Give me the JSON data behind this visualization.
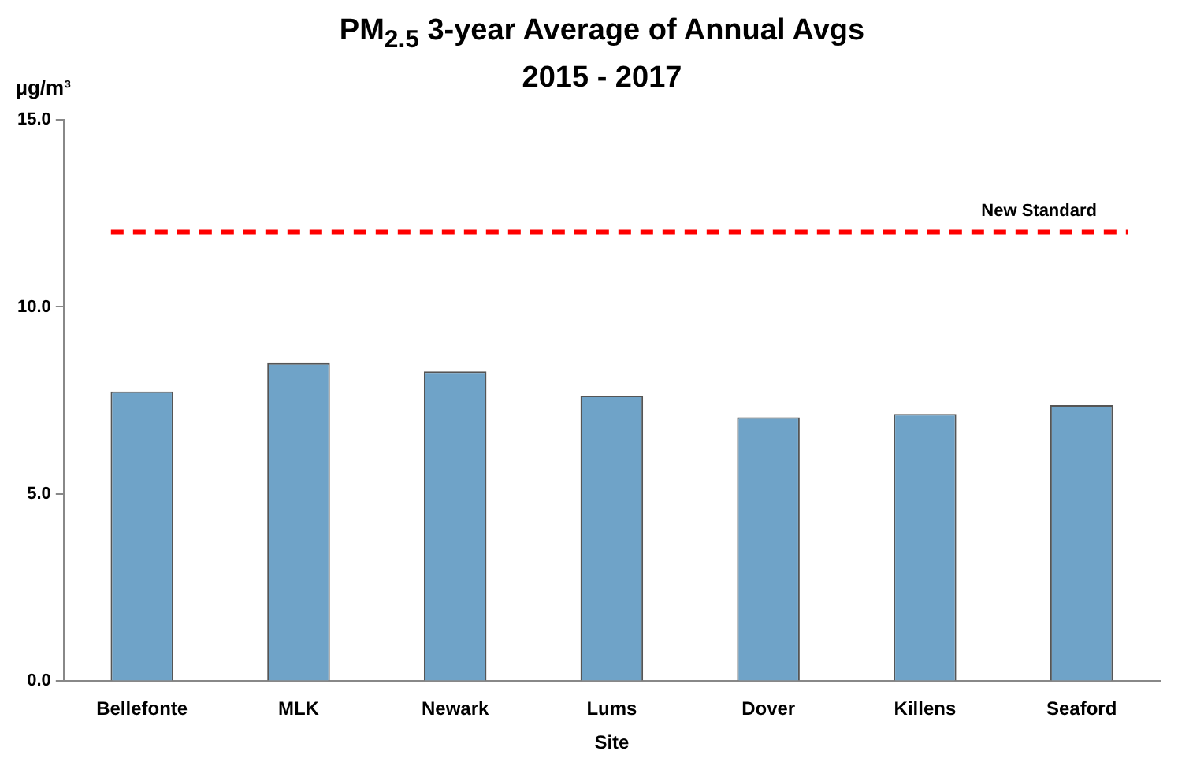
{
  "chart_data": {
    "type": "bar",
    "title": "PM$_{2.5}$ 3-year Average of Annual Avgs",
    "subtitle": "2015 - 2017",
    "xlabel": "Site",
    "ylabel": "µg/m³",
    "categories": [
      "Bellefonte",
      "MLK",
      "Newark",
      "Lums",
      "Dover",
      "Killens",
      "Seaford"
    ],
    "values": [
      7.74,
      8.5,
      8.28,
      7.63,
      7.05,
      7.14,
      7.38
    ],
    "color": "#6fa3c8",
    "ylim": [
      0,
      15
    ],
    "yticks": [
      {
        "value": 0,
        "label": "0.0"
      },
      {
        "value": 5,
        "label": "5.0"
      },
      {
        "value": 10,
        "label": "10.0"
      },
      {
        "value": 15,
        "label": "15.0"
      }
    ],
    "ref_lines": [
      {
        "axis": "y",
        "value": 12,
        "label": "New Standard",
        "color": "#ff0000",
        "line_style": "dashed"
      }
    ]
  }
}
